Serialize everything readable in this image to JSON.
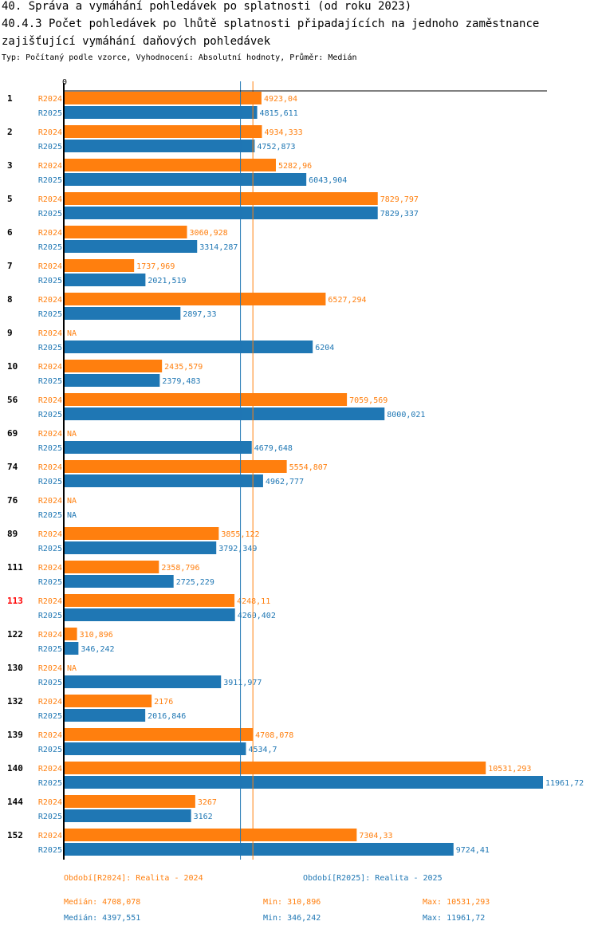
{
  "header": {
    "title_line1": "40. Správa a vymáhání pohledávek po splatnosti (od roku 2023)",
    "title_line2": "40.4.3 Počet pohledávek po lhůtě splatnosti připadajících na jednoho zaměstnance",
    "title_line3": "zajišťující vymáhání daňových pohledávek",
    "subtitle": "Typ: Počítaný podle vzorce, Vyhodnocení: Absolutní hodnoty, Průměr: Medián"
  },
  "colors": {
    "R2024": "#ff7f0e",
    "R2025": "#1f77b4",
    "highlight_category": "#ff0000",
    "axis": "#000000"
  },
  "chart_data": {
    "type": "bar",
    "orientation": "horizontal",
    "title": "40.4.3 Počet pohledávek po lhůtě splatnosti připadajících na jednoho zaměstnance zajišťující vymáhání daňových pohledávek",
    "xlabel": "",
    "ylabel": "",
    "x_tick_labels": [
      "0"
    ],
    "xlim": [
      0,
      11961.72
    ],
    "grid": false,
    "categories": [
      "1",
      "2",
      "3",
      "5",
      "6",
      "7",
      "8",
      "9",
      "10",
      "56",
      "69",
      "74",
      "76",
      "89",
      "111",
      "113",
      "122",
      "130",
      "132",
      "139",
      "140",
      "144",
      "152"
    ],
    "highlighted_category": "113",
    "series": [
      {
        "name": "R2024",
        "values": [
          4923.04,
          4934.333,
          5282.96,
          7829.797,
          3060.928,
          1737.969,
          6527.294,
          null,
          2435.579,
          7059.569,
          null,
          5554.807,
          null,
          3855.122,
          2358.796,
          4248.11,
          310.896,
          null,
          2176,
          4708.078,
          10531.293,
          3267,
          7304.33
        ],
        "labels": [
          "4923,04",
          "4934,333",
          "5282,96",
          "7829,797",
          "3060,928",
          "1737,969",
          "6527,294",
          "NA",
          "2435,579",
          "7059,569",
          "NA",
          "5554,807",
          "NA",
          "3855,122",
          "2358,796",
          "4248,11",
          "310,896",
          "NA",
          "2176",
          "4708,078",
          "10531,293",
          "3267",
          "7304,33"
        ],
        "median": 4708.078
      },
      {
        "name": "R2025",
        "values": [
          4815.611,
          4752.873,
          6043.904,
          7829.337,
          3314.287,
          2021.519,
          2897.33,
          6204,
          2379.483,
          8000.021,
          4679.648,
          4962.777,
          null,
          3792.349,
          2725.229,
          4260.402,
          346.242,
          3911.977,
          2016.846,
          4534.7,
          11961.72,
          3162,
          9724.41
        ],
        "labels": [
          "4815,611",
          "4752,873",
          "6043,904",
          "7829,337",
          "3314,287",
          "2021,519",
          "2897,33",
          "6204",
          "2379,483",
          "8000,021",
          "4679,648",
          "4962,777",
          "NA",
          "3792,349",
          "2725,229",
          "4260,402",
          "346,242",
          "3911,977",
          "2016,846",
          "4534,7",
          "11961,72",
          "3162",
          "9724,41"
        ],
        "median": 4397.551
      }
    ],
    "legend": [
      {
        "series": "R2024",
        "text": "Období[R2024]: Realita - 2024"
      },
      {
        "series": "R2025",
        "text": "Období[R2025]: Realita - 2025"
      }
    ],
    "stats": {
      "R2024": {
        "median": "Medián: 4708,078",
        "min": "Min: 310,896",
        "max": "Max: 10531,293"
      },
      "R2025": {
        "median": "Medián: 4397,551",
        "min": "Min: 346,242",
        "max": "Max: 11961,72"
      }
    }
  }
}
